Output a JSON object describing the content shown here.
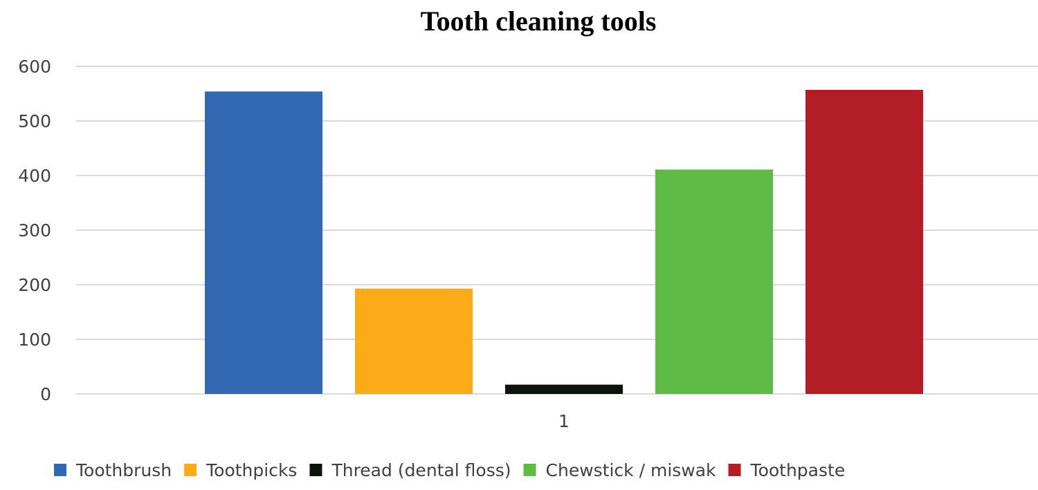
{
  "chart_data": {
    "type": "bar",
    "title": "Tooth cleaning tools",
    "xlabel": "",
    "ylabel": "",
    "categories": [
      "1"
    ],
    "ylim": [
      0,
      600
    ],
    "yticks": [
      0,
      100,
      200,
      300,
      400,
      500,
      600
    ],
    "grid": true,
    "legend_placement": "bottom",
    "series": [
      {
        "name": "Toothbrush",
        "values": [
          554
        ],
        "color": "#3268b1"
      },
      {
        "name": "Toothpicks",
        "values": [
          193
        ],
        "color": "#fbab18"
      },
      {
        "name": "Thread (dental floss)",
        "values": [
          17
        ],
        "color": "#0c120c"
      },
      {
        "name": "Chewstick / miswak",
        "values": [
          411
        ],
        "color": "#60bb46"
      },
      {
        "name": "Toothpaste",
        "values": [
          557
        ],
        "color": "#b31e26"
      }
    ]
  }
}
